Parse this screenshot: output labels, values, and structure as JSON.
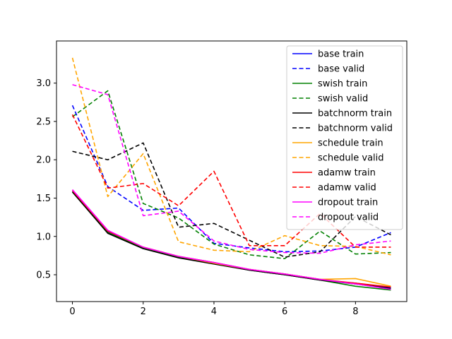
{
  "chart_data": {
    "type": "line",
    "title": "",
    "xlabel": "",
    "ylabel": "",
    "xlim": [
      -0.45,
      9.45
    ],
    "ylim": [
      0.15,
      3.55
    ],
    "xticks": [
      0,
      2,
      4,
      6,
      8
    ],
    "yticks": [
      0.5,
      1.0,
      1.5,
      2.0,
      2.5,
      3.0
    ],
    "xtick_labels": [
      "0",
      "2",
      "4",
      "6",
      "8"
    ],
    "ytick_labels": [
      "0.5",
      "1.0",
      "1.5",
      "2.0",
      "2.5",
      "3.0"
    ],
    "grid": false,
    "legend_position": "top-right",
    "x": [
      0,
      1,
      2,
      3,
      4,
      5,
      6,
      7,
      8,
      9
    ],
    "series": [
      {
        "name": "base train",
        "color": "#0000ff",
        "dash": "solid",
        "values": [
          1.59,
          1.06,
          0.85,
          0.73,
          0.65,
          0.56,
          0.5,
          0.43,
          0.39,
          0.33
        ]
      },
      {
        "name": "base valid",
        "color": "#0000ff",
        "dash": "dashed",
        "values": [
          2.71,
          1.65,
          1.34,
          1.37,
          0.91,
          0.85,
          0.8,
          0.81,
          0.86,
          1.05
        ]
      },
      {
        "name": "swish train",
        "color": "#008000",
        "dash": "solid",
        "values": [
          1.58,
          1.05,
          0.85,
          0.73,
          0.65,
          0.56,
          0.5,
          0.43,
          0.35,
          0.3
        ]
      },
      {
        "name": "swish valid",
        "color": "#008000",
        "dash": "dashed",
        "values": [
          2.56,
          2.9,
          1.43,
          1.24,
          0.9,
          0.76,
          0.71,
          1.07,
          0.77,
          0.79
        ]
      },
      {
        "name": "batchnorm train",
        "color": "#000000",
        "dash": "solid",
        "values": [
          1.58,
          1.04,
          0.84,
          0.72,
          0.64,
          0.56,
          0.5,
          0.43,
          0.38,
          0.32
        ]
      },
      {
        "name": "batchnorm valid",
        "color": "#000000",
        "dash": "dashed",
        "values": [
          2.11,
          2.0,
          2.22,
          1.12,
          1.17,
          0.95,
          0.73,
          0.8,
          1.26,
          1.02
        ]
      },
      {
        "name": "schedule train",
        "color": "#ffa500",
        "dash": "solid",
        "values": [
          1.6,
          1.07,
          0.86,
          0.74,
          0.65,
          0.57,
          0.51,
          0.44,
          0.45,
          0.35
        ]
      },
      {
        "name": "schedule valid",
        "color": "#ffa500",
        "dash": "dashed",
        "values": [
          3.33,
          1.52,
          2.08,
          0.93,
          0.82,
          0.8,
          1.01,
          0.88,
          0.87,
          0.76
        ]
      },
      {
        "name": "adamw train",
        "color": "#ff0000",
        "dash": "solid",
        "values": [
          1.6,
          1.07,
          0.86,
          0.74,
          0.66,
          0.57,
          0.51,
          0.44,
          0.39,
          0.34
        ]
      },
      {
        "name": "adamw valid",
        "color": "#ff0000",
        "dash": "dashed",
        "values": [
          2.59,
          1.63,
          1.69,
          1.4,
          1.85,
          0.88,
          0.88,
          1.3,
          0.86,
          0.86
        ]
      },
      {
        "name": "dropout train",
        "color": "#ff00ff",
        "dash": "solid",
        "values": [
          1.61,
          1.08,
          0.86,
          0.74,
          0.66,
          0.57,
          0.51,
          0.44,
          0.38,
          0.31
        ]
      },
      {
        "name": "dropout valid",
        "color": "#ff00ff",
        "dash": "dashed",
        "values": [
          2.98,
          2.85,
          1.27,
          1.33,
          0.94,
          0.83,
          0.79,
          0.78,
          0.89,
          0.94
        ]
      }
    ]
  }
}
